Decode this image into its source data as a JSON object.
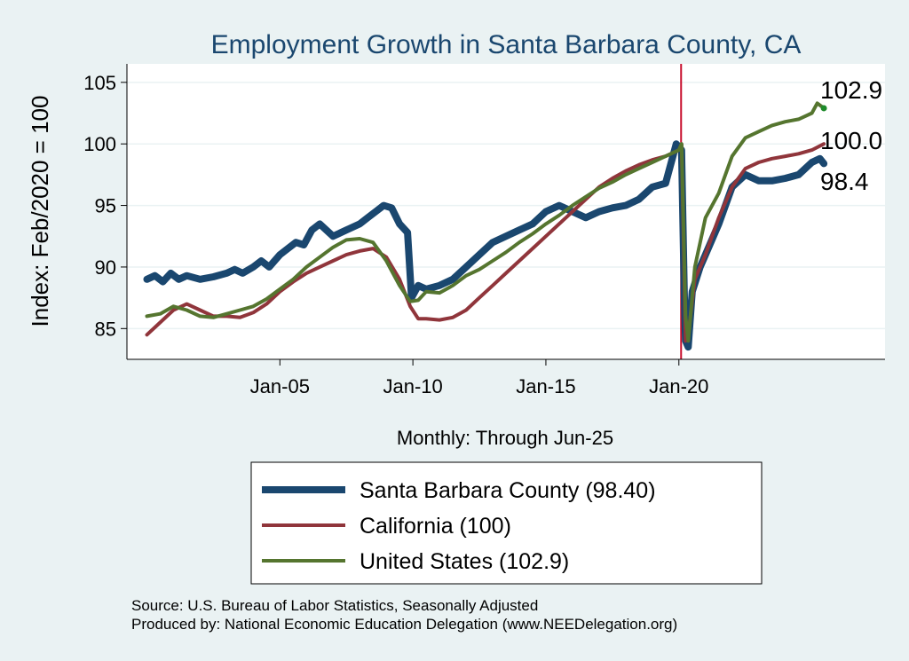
{
  "chart_data": {
    "type": "line",
    "title": "Employment Growth in Santa Barbara  County, CA",
    "xlabel": "Monthly: Through Jun-25",
    "ylabel": "Index: Feb/2020 = 100",
    "ylim": [
      82.5,
      106.5
    ],
    "xlim": [
      1999.25,
      2027.75
    ],
    "yticks": [
      85,
      90,
      95,
      100,
      105
    ],
    "xticks": [
      {
        "label": "Jan-05",
        "value": 2005.0
      },
      {
        "label": "Jan-10",
        "value": 2010.0
      },
      {
        "label": "Jan-15",
        "value": 2015.0
      },
      {
        "label": "Jan-20",
        "value": 2020.0
      }
    ],
    "reference_line": {
      "x": 2020.083,
      "color": "#c8102e"
    },
    "grid": true,
    "legend_placement": "bottom",
    "series": [
      {
        "name": "Santa Barbara  County (98.40)",
        "color": "#1a476f",
        "width": 8,
        "end_label": "98.4",
        "x": [
          2000.0,
          2000.3,
          2000.6,
          2000.9,
          2001.2,
          2001.5,
          2002.0,
          2002.5,
          2003.0,
          2003.3,
          2003.6,
          2004.0,
          2004.3,
          2004.6,
          2005.0,
          2005.3,
          2005.6,
          2005.9,
          2006.2,
          2006.5,
          2007.0,
          2007.5,
          2008.0,
          2008.3,
          2008.6,
          2008.9,
          2009.2,
          2009.5,
          2009.8,
          2009.95,
          2010.2,
          2010.5,
          2011.0,
          2011.5,
          2012.0,
          2012.5,
          2013.0,
          2013.5,
          2014.0,
          2014.5,
          2015.0,
          2015.5,
          2016.0,
          2016.5,
          2017.0,
          2017.5,
          2018.0,
          2018.5,
          2019.0,
          2019.5,
          2019.9,
          2020.1,
          2020.2,
          2020.25,
          2020.35,
          2020.5,
          2020.8,
          2021.0,
          2021.5,
          2022.0,
          2022.5,
          2023.0,
          2023.5,
          2024.0,
          2024.5,
          2025.0,
          2025.3,
          2025.45
        ],
        "values": [
          89.0,
          89.3,
          88.8,
          89.5,
          89.0,
          89.3,
          89.0,
          89.2,
          89.5,
          89.8,
          89.5,
          90.0,
          90.5,
          90.0,
          91.0,
          91.5,
          92.0,
          91.8,
          93.0,
          93.5,
          92.5,
          93.0,
          93.5,
          94.0,
          94.5,
          95.0,
          94.8,
          93.5,
          92.8,
          87.5,
          88.5,
          88.2,
          88.5,
          89.0,
          90.0,
          91.0,
          92.0,
          92.5,
          93.0,
          93.5,
          94.5,
          95.0,
          94.5,
          94.0,
          94.5,
          94.8,
          95.0,
          95.5,
          96.5,
          96.8,
          100.0,
          99.5,
          88.0,
          84.0,
          83.5,
          88.0,
          90.0,
          91.0,
          93.5,
          96.5,
          97.5,
          97.0,
          97.0,
          97.2,
          97.5,
          98.5,
          98.8,
          98.4
        ]
      },
      {
        "name": "California (100)",
        "color": "#90353b",
        "width": 4,
        "end_label": "100.0",
        "x": [
          2000.0,
          2000.5,
          2001.0,
          2001.5,
          2002.0,
          2002.5,
          2003.0,
          2003.5,
          2004.0,
          2004.5,
          2005.0,
          2005.5,
          2006.0,
          2006.5,
          2007.0,
          2007.5,
          2008.0,
          2008.5,
          2009.0,
          2009.5,
          2009.9,
          2010.2,
          2010.5,
          2011.0,
          2011.5,
          2012.0,
          2012.5,
          2013.0,
          2013.5,
          2014.0,
          2014.5,
          2015.0,
          2015.5,
          2016.0,
          2016.5,
          2017.0,
          2017.5,
          2018.0,
          2018.5,
          2019.0,
          2019.5,
          2020.0,
          2020.1,
          2020.25,
          2020.35,
          2020.6,
          2021.0,
          2021.5,
          2022.0,
          2022.5,
          2023.0,
          2023.5,
          2024.0,
          2024.5,
          2025.0,
          2025.45
        ],
        "values": [
          84.5,
          85.5,
          86.5,
          87.0,
          86.5,
          86.0,
          86.0,
          85.9,
          86.3,
          87.0,
          88.0,
          88.8,
          89.5,
          90.0,
          90.5,
          91.0,
          91.3,
          91.5,
          90.8,
          89.0,
          86.8,
          85.8,
          85.8,
          85.7,
          85.9,
          86.5,
          87.5,
          88.5,
          89.5,
          90.5,
          91.5,
          92.5,
          93.5,
          94.5,
          95.5,
          96.5,
          97.2,
          97.8,
          98.3,
          98.7,
          99.0,
          99.5,
          100.0,
          84.0,
          84.5,
          89.0,
          91.0,
          94.0,
          96.5,
          98.0,
          98.5,
          98.8,
          99.0,
          99.2,
          99.5,
          100.0
        ]
      },
      {
        "name": "United States (102.9)",
        "color": "#55752f",
        "width": 4,
        "end_label": "102.9",
        "x": [
          2000.0,
          2000.5,
          2001.0,
          2001.5,
          2002.0,
          2002.5,
          2003.0,
          2003.5,
          2004.0,
          2004.5,
          2005.0,
          2005.5,
          2006.0,
          2006.5,
          2007.0,
          2007.5,
          2008.0,
          2008.5,
          2009.0,
          2009.5,
          2009.9,
          2010.2,
          2010.5,
          2011.0,
          2011.5,
          2012.0,
          2012.5,
          2013.0,
          2013.5,
          2014.0,
          2014.5,
          2015.0,
          2015.5,
          2016.0,
          2016.5,
          2017.0,
          2017.5,
          2018.0,
          2018.5,
          2019.0,
          2019.5,
          2020.0,
          2020.1,
          2020.25,
          2020.35,
          2020.6,
          2021.0,
          2021.5,
          2022.0,
          2022.5,
          2023.0,
          2023.5,
          2024.0,
          2024.5,
          2025.0,
          2025.2,
          2025.45
        ],
        "values": [
          86.0,
          86.2,
          86.8,
          86.5,
          86.0,
          85.9,
          86.2,
          86.5,
          86.8,
          87.4,
          88.2,
          89.0,
          90.0,
          90.8,
          91.6,
          92.2,
          92.3,
          92.0,
          90.5,
          88.5,
          87.2,
          87.3,
          88.0,
          87.9,
          88.5,
          89.3,
          89.8,
          90.5,
          91.2,
          92.0,
          92.7,
          93.5,
          94.2,
          95.0,
          95.7,
          96.4,
          96.9,
          97.5,
          98.0,
          98.5,
          99.0,
          99.5,
          100.0,
          86.0,
          84.0,
          90.0,
          94.0,
          96.0,
          99.0,
          100.5,
          101.0,
          101.5,
          101.8,
          102.0,
          102.5,
          103.3,
          102.9
        ]
      }
    ]
  },
  "source_lines": [
    "Source: U.S. Bureau of Labor Statistics, Seasonally Adjusted",
    "Produced by: National Economic Education Delegation (www.NEEDelegation.org)"
  ]
}
